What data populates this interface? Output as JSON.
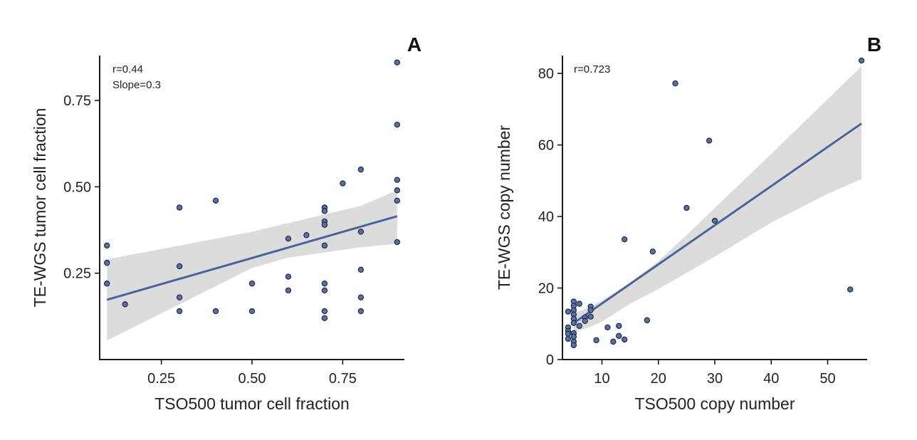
{
  "chart_data": [
    {
      "type": "scatter",
      "panel_label": "A",
      "xlabel": "TSO500 tumor cell fraction",
      "ylabel": "TE-WGS tumor cell fraction",
      "xlim": [
        0.08,
        0.92
      ],
      "ylim": [
        0.0,
        0.88
      ],
      "xticks": [
        0.25,
        0.5,
        0.75
      ],
      "xtick_labels": [
        "0.25",
        "0.50",
        "0.75"
      ],
      "yticks": [
        0.25,
        0.5,
        0.75
      ],
      "ytick_labels": [
        "0.25",
        "0.50",
        "0.75"
      ],
      "annotations": [
        "r=0.44",
        "Slope=0.3"
      ],
      "points": [
        [
          0.1,
          0.33
        ],
        [
          0.1,
          0.28
        ],
        [
          0.1,
          0.22
        ],
        [
          0.15,
          0.16
        ],
        [
          0.3,
          0.44
        ],
        [
          0.3,
          0.27
        ],
        [
          0.3,
          0.18
        ],
        [
          0.3,
          0.14
        ],
        [
          0.4,
          0.46
        ],
        [
          0.4,
          0.14
        ],
        [
          0.5,
          0.22
        ],
        [
          0.5,
          0.14
        ],
        [
          0.6,
          0.35
        ],
        [
          0.6,
          0.24
        ],
        [
          0.6,
          0.2
        ],
        [
          0.65,
          0.36
        ],
        [
          0.7,
          0.44
        ],
        [
          0.7,
          0.43
        ],
        [
          0.7,
          0.4
        ],
        [
          0.7,
          0.39
        ],
        [
          0.7,
          0.33
        ],
        [
          0.7,
          0.22
        ],
        [
          0.7,
          0.2
        ],
        [
          0.7,
          0.14
        ],
        [
          0.7,
          0.12
        ],
        [
          0.75,
          0.51
        ],
        [
          0.8,
          0.55
        ],
        [
          0.8,
          0.37
        ],
        [
          0.8,
          0.26
        ],
        [
          0.8,
          0.18
        ],
        [
          0.8,
          0.14
        ],
        [
          0.9,
          0.86
        ],
        [
          0.9,
          0.68
        ],
        [
          0.9,
          0.52
        ],
        [
          0.9,
          0.49
        ],
        [
          0.9,
          0.46
        ],
        [
          0.9,
          0.34
        ]
      ],
      "fit": {
        "x": [
          0.1,
          0.9
        ],
        "y": [
          0.173,
          0.415
        ]
      },
      "ci_band": {
        "x": [
          0.1,
          0.3,
          0.5,
          0.6,
          0.7,
          0.8,
          0.9
        ],
        "upper": [
          0.29,
          0.33,
          0.37,
          0.395,
          0.42,
          0.445,
          0.49
        ],
        "lower": [
          0.055,
          0.16,
          0.265,
          0.295,
          0.31,
          0.325,
          0.335
        ]
      }
    },
    {
      "type": "scatter",
      "panel_label": "B",
      "xlabel": "TSO500 copy number",
      "ylabel": "TE-WGS copy number",
      "xlim": [
        3.0,
        57.0
      ],
      "ylim": [
        0,
        85
      ],
      "xticks": [
        10,
        20,
        30,
        40,
        50
      ],
      "xtick_labels": [
        "10",
        "20",
        "30",
        "40",
        "50"
      ],
      "yticks": [
        0,
        20,
        40,
        60,
        80
      ],
      "ytick_labels": [
        "0",
        "20",
        "40",
        "60",
        "80"
      ],
      "annotations": [
        "r=0.723"
      ],
      "points": [
        [
          4,
          13.4
        ],
        [
          4,
          9.0
        ],
        [
          4,
          8.0
        ],
        [
          4,
          7.2
        ],
        [
          4,
          5.8
        ],
        [
          5,
          16.2
        ],
        [
          5,
          15.0
        ],
        [
          5,
          13.8
        ],
        [
          5,
          12.6
        ],
        [
          5,
          11.4
        ],
        [
          5,
          10.2
        ],
        [
          5,
          7.4
        ],
        [
          5,
          6.4
        ],
        [
          5,
          5.0
        ],
        [
          5,
          4.0
        ],
        [
          6,
          15.6
        ],
        [
          6,
          9.4
        ],
        [
          7,
          11.8
        ],
        [
          7,
          10.8
        ],
        [
          8,
          14.8
        ],
        [
          8,
          13.8
        ],
        [
          8,
          12.0
        ],
        [
          9,
          5.4
        ],
        [
          11,
          9.0
        ],
        [
          12,
          5.0
        ],
        [
          13,
          9.4
        ],
        [
          13,
          6.6
        ],
        [
          14,
          33.6
        ],
        [
          14,
          5.6
        ],
        [
          18,
          11.0
        ],
        [
          19,
          30.2
        ],
        [
          23,
          77.2
        ],
        [
          25,
          42.4
        ],
        [
          29,
          61.2
        ],
        [
          30,
          38.8
        ],
        [
          54,
          19.6
        ],
        [
          56,
          83.6
        ]
      ],
      "fit": {
        "x": [
          5,
          56
        ],
        "y": [
          10.2,
          66.0
        ]
      },
      "ci_band": {
        "x": [
          5,
          8,
          10,
          15,
          20,
          25,
          30,
          40,
          50,
          56
        ],
        "upper": [
          13.0,
          14.8,
          16.5,
          21.5,
          27.5,
          34.8,
          42.4,
          57.5,
          72.8,
          82.0
        ],
        "lower": [
          7.6,
          9.2,
          10.6,
          15.6,
          19.7,
          24.2,
          28.8,
          38.3,
          46.3,
          50.5
        ]
      }
    }
  ]
}
